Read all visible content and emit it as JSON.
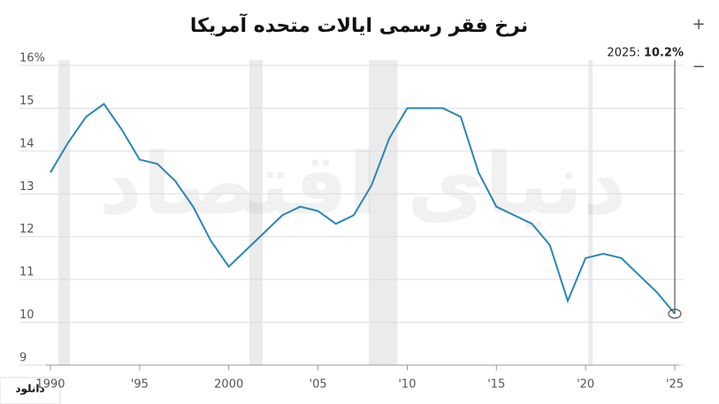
{
  "chart_data": {
    "type": "line",
    "title": "نرخ فقر رسمی ایالات متحده آمریکا",
    "watermark": "دنیای اقتصاد",
    "annotation": "2025:",
    "download": "دانلود",
    "zoom_in": "+",
    "zoom_out": "−",
    "x": [
      1990,
      1991,
      1992,
      1993,
      1994,
      1995,
      1996,
      1997,
      1998,
      1999,
      2000,
      2001,
      2002,
      2003,
      2004,
      2005,
      2006,
      2007,
      2008,
      2009,
      2010,
      2011,
      2012,
      2013,
      2014,
      2015,
      2016,
      2017,
      2018,
      2019,
      2020,
      2021,
      2022,
      2023,
      2024,
      2025
    ],
    "series": [
      {
        "color": "#2a86b8",
        "values": [
          13.5,
          14.2,
          14.8,
          15.1,
          14.5,
          13.8,
          13.7,
          13.3,
          12.7,
          11.9,
          11.3,
          11.7,
          12.1,
          12.5,
          12.7,
          12.6,
          12.3,
          12.5,
          13.2,
          14.3,
          15.0,
          15.0,
          15.0,
          14.8,
          13.5,
          12.7,
          12.5,
          12.3,
          11.8,
          10.5,
          11.5,
          11.6,
          11.5,
          11.1,
          10.7,
          10.2
        ],
        "value_labels": [
          null,
          null,
          null,
          null,
          null,
          null,
          null,
          null,
          null,
          null,
          null,
          null,
          null,
          null,
          null,
          null,
          null,
          null,
          null,
          null,
          null,
          null,
          null,
          null,
          null,
          null,
          null,
          null,
          null,
          null,
          null,
          null,
          null,
          null,
          null,
          "10.2%"
        ]
      }
    ],
    "recessions": [
      [
        1990.45,
        1991.1
      ],
      [
        2001.15,
        2001.9
      ],
      [
        2007.85,
        2009.45
      ],
      [
        2020.15,
        2020.4
      ]
    ],
    "xlim": [
      1990,
      2025
    ],
    "xticks": [
      1990,
      {
        "value": 1995,
        "label": "'95"
      },
      2000,
      {
        "value": 2005,
        "label": "'05"
      },
      {
        "value": 2010,
        "label": "'10"
      },
      {
        "value": 2015,
        "label": "'15"
      },
      {
        "value": 2020,
        "label": "'20"
      },
      {
        "value": 2025,
        "label": "'25"
      }
    ],
    "ylim": [
      9,
      16
    ],
    "yticks": [
      9,
      10,
      11,
      12,
      13,
      14,
      15,
      {
        "value": 16,
        "label": "16%"
      }
    ],
    "grid": true
  }
}
